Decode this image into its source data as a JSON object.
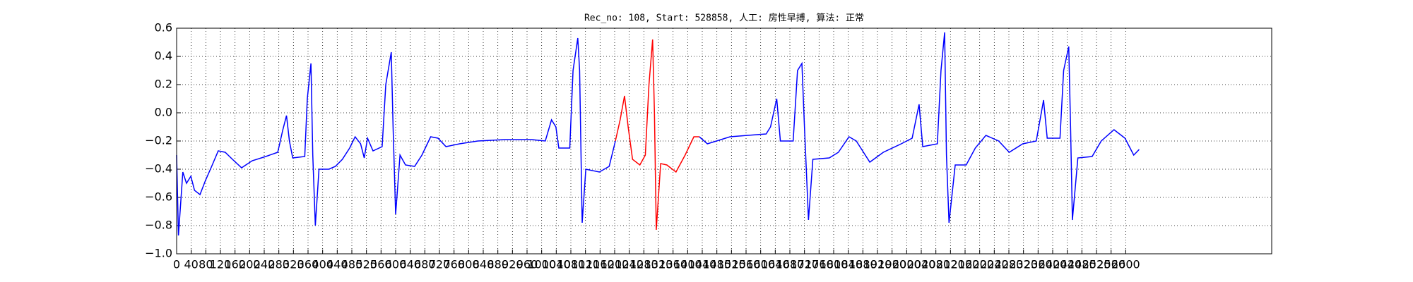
{
  "chart_data": {
    "type": "line",
    "title": "Rec_no: 108, Start: 528858, 人工: 房性早搏, 算法: 正常",
    "x": [
      0,
      5,
      17,
      27,
      39,
      49,
      64,
      79,
      96,
      114,
      133,
      153,
      178,
      207,
      244,
      277,
      291,
      301,
      309,
      318,
      351,
      358,
      368,
      373,
      380,
      390,
      417,
      435,
      454,
      474,
      489,
      504,
      514,
      523,
      538,
      563,
      573,
      588,
      593,
      600,
      612,
      627,
      652,
      672,
      696,
      716,
      738,
      775,
      825,
      899,
      973,
      1010,
      1027,
      1039,
      1047,
      1077,
      1086,
      1099,
      1104,
      1111,
      1121,
      1158,
      1185,
      1202,
      1215,
      1227,
      1237,
      1249,
      1269,
      1284,
      1294,
      1304,
      1309,
      1314,
      1326,
      1343,
      1368,
      1393,
      1417,
      1432,
      1454,
      1479,
      1516,
      1565,
      1615,
      1627,
      1644,
      1654,
      1689,
      1701,
      1713,
      1720,
      1731,
      1743,
      1788,
      1813,
      1842,
      1862,
      1899,
      1936,
      1985,
      2015,
      2034,
      2044,
      2084,
      2094,
      2104,
      2109,
      2116,
      2133,
      2163,
      2188,
      2217,
      2252,
      2281,
      2318,
      2355,
      2375,
      2385,
      2420,
      2430,
      2444,
      2449,
      2454,
      2469,
      2508,
      2533,
      2568,
      2598,
      2622,
      2637
    ],
    "series": [
      {
        "color": "#0000ff",
        "values": [
          -0.3,
          -0.87,
          -0.42,
          -0.5,
          -0.45,
          -0.55,
          -0.58,
          -0.48,
          -0.38,
          -0.27,
          -0.28,
          -0.33,
          -0.39,
          -0.34,
          -0.31,
          -0.28,
          -0.12,
          -0.02,
          -0.2,
          -0.32,
          -0.31,
          0.1,
          0.35,
          -0.3,
          -0.8,
          -0.4,
          -0.4,
          -0.38,
          -0.33,
          -0.25,
          -0.17,
          -0.22,
          -0.32,
          -0.18,
          -0.27,
          -0.24,
          0.2,
          0.43,
          -0.1,
          -0.72,
          -0.3,
          -0.37,
          -0.38,
          -0.3,
          -0.17,
          -0.18,
          -0.24,
          -0.22,
          -0.2,
          -0.19,
          -0.19,
          -0.2,
          -0.05,
          -0.1,
          -0.25,
          -0.25,
          0.3,
          0.53,
          0.3,
          -0.78,
          -0.4,
          -0.42,
          -0.38,
          -0.2,
          null,
          null,
          null,
          null,
          null,
          null,
          null,
          null,
          null,
          null,
          null,
          null,
          null,
          null,
          null,
          -0.17,
          -0.22,
          -0.2,
          -0.17,
          -0.16,
          -0.15,
          -0.1,
          0.1,
          -0.2,
          -0.2,
          0.3,
          0.35,
          -0.1,
          -0.76,
          -0.33,
          -0.32,
          -0.28,
          -0.17,
          -0.2,
          -0.35,
          -0.28,
          -0.22,
          -0.18,
          0.06,
          -0.24,
          -0.22,
          0.3,
          0.57,
          -0.3,
          -0.78,
          -0.37,
          -0.37,
          -0.25,
          -0.16,
          -0.2,
          -0.28,
          -0.22,
          -0.2,
          0.09,
          -0.18,
          -0.18,
          0.3,
          0.47,
          -0.1,
          -0.76,
          -0.32,
          -0.31,
          -0.2,
          -0.12,
          -0.18,
          -0.3,
          -0.26
        ]
      },
      {
        "color": "#ff0000",
        "values": [
          null,
          null,
          null,
          null,
          null,
          null,
          null,
          null,
          null,
          null,
          null,
          null,
          null,
          null,
          null,
          null,
          null,
          null,
          null,
          null,
          null,
          null,
          null,
          null,
          null,
          null,
          null,
          null,
          null,
          null,
          null,
          null,
          null,
          null,
          null,
          null,
          null,
          null,
          null,
          null,
          null,
          null,
          null,
          null,
          null,
          null,
          null,
          null,
          null,
          null,
          null,
          null,
          null,
          null,
          null,
          null,
          null,
          null,
          null,
          null,
          null,
          null,
          null,
          -0.2,
          -0.05,
          0.12,
          -0.1,
          -0.33,
          -0.37,
          -0.3,
          0.2,
          0.52,
          0,
          -0.83,
          -0.36,
          -0.37,
          -0.42,
          -0.3,
          -0.17,
          -0.17,
          null,
          null,
          null,
          null,
          null,
          null,
          null,
          null,
          null,
          null,
          null,
          null,
          null,
          null,
          null,
          null,
          null,
          null,
          null,
          null,
          null,
          null,
          null,
          null,
          null,
          null,
          null,
          null,
          null,
          null,
          null,
          null,
          null,
          null,
          null,
          null,
          null,
          null,
          null,
          null,
          null,
          null,
          null,
          null,
          null,
          null,
          null,
          null,
          null,
          null,
          null
        ]
      }
    ],
    "xlim": [
      0,
      3000
    ],
    "xticks": [
      0,
      40,
      80,
      120,
      160,
      200,
      240,
      280,
      320,
      360,
      400,
      440,
      480,
      520,
      560,
      600,
      640,
      680,
      720,
      760,
      800,
      840,
      880,
      920,
      960,
      1000,
      1040,
      1080,
      1120,
      1160,
      1200,
      1240,
      1280,
      1320,
      1360,
      1400,
      1440,
      1480,
      1520,
      1560,
      1600,
      1640,
      1680,
      1720,
      1760,
      1800,
      1840,
      1880,
      1920,
      1960,
      2000,
      2040,
      2080,
      2120,
      2160,
      2200,
      2240,
      2280,
      2320,
      2360,
      2400,
      2440,
      2480,
      2520,
      2560,
      2600
    ],
    "ylim": [
      -1,
      0.6
    ],
    "yticks": [
      {
        "value": -1,
        "label": "−1.0"
      },
      {
        "value": -0.8,
        "label": "−0.8"
      },
      {
        "value": -0.6,
        "label": "−0.6"
      },
      {
        "value": -0.4,
        "label": "−0.4"
      },
      {
        "value": -0.2,
        "label": "−0.2"
      },
      {
        "value": 0,
        "label": "0.0"
      },
      {
        "value": 0.2,
        "label": "0.2"
      },
      {
        "value": 0.4,
        "label": "0.4"
      },
      {
        "value": 0.6,
        "label": "0.6"
      }
    ],
    "grid": true
  }
}
